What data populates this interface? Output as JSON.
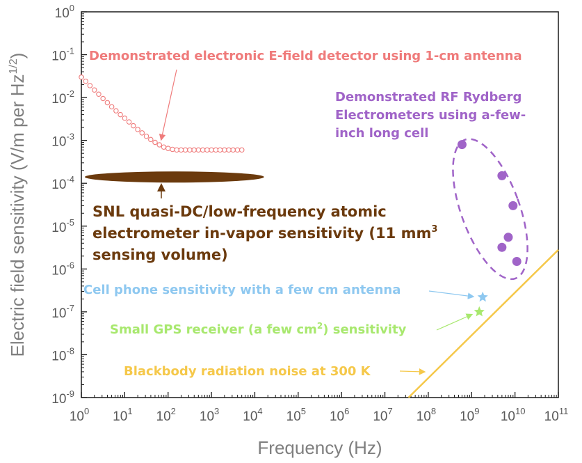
{
  "chart_data": {
    "type": "scatter",
    "title": "",
    "xlabel": "Frequency (Hz)",
    "ylabel": "Electric field sensitivity (V/m per Hz",
    "ylabel_sup": "1/2",
    "ylabel_close": ")",
    "x_scale": "log",
    "y_scale": "log",
    "xlim": [
      1,
      100000000000
    ],
    "ylim": [
      1e-09,
      1
    ],
    "grid": false,
    "x_ticks": [
      {
        "exp": "0",
        "value": 1
      },
      {
        "exp": "1",
        "value": 10
      },
      {
        "exp": "2",
        "value": 100
      },
      {
        "exp": "3",
        "value": 1000
      },
      {
        "exp": "4",
        "value": 10000
      },
      {
        "exp": "5",
        "value": 100000
      },
      {
        "exp": "6",
        "value": 1000000
      },
      {
        "exp": "7",
        "value": 10000000
      },
      {
        "exp": "8",
        "value": 100000000
      },
      {
        "exp": "9",
        "value": 1000000000
      },
      {
        "exp": "10",
        "value": 10000000000
      },
      {
        "exp": "11",
        "value": 100000000000
      }
    ],
    "y_ticks": [
      {
        "exp": "-9",
        "value": 1e-09
      },
      {
        "exp": "-8",
        "value": 1e-08
      },
      {
        "exp": "-7",
        "value": 1e-07
      },
      {
        "exp": "-6",
        "value": 1e-06
      },
      {
        "exp": "-5",
        "value": 1e-05
      },
      {
        "exp": "-4",
        "value": 0.0001
      },
      {
        "exp": "-3",
        "value": 0.001
      },
      {
        "exp": "-2",
        "value": 0.01
      },
      {
        "exp": "-1",
        "value": 0.1
      },
      {
        "exp": "0",
        "value": 1
      }
    ],
    "tick_base": "10",
    "colors": {
      "electronic": "#ef7b7b",
      "rydberg": "#a064c8",
      "snl": "#6b3a0d",
      "cellphone": "#8ec8f0",
      "gps": "#a8e86e",
      "blackbody": "#f5c84a"
    },
    "series": [
      {
        "key": "electronic",
        "marker": "open-circle",
        "x": [
          1.0,
          1.26,
          1.58,
          2.0,
          2.51,
          3.16,
          3.98,
          5.01,
          6.31,
          7.94,
          10.0,
          12.6,
          15.8,
          20.0,
          25.1,
          31.6,
          39.8,
          50.1,
          63.1,
          79.4,
          100,
          126,
          158,
          200,
          251,
          316,
          398,
          501,
          631,
          794,
          1000,
          1260,
          1580,
          2000,
          2510,
          3160,
          3980,
          5010
        ],
        "y": [
          0.03,
          0.024,
          0.019,
          0.015,
          0.012,
          0.0095,
          0.0076,
          0.0061,
          0.0049,
          0.004,
          0.0033,
          0.0027,
          0.0022,
          0.0018,
          0.0015,
          0.00125,
          0.00105,
          0.0009,
          0.00079,
          0.0007,
          0.00065,
          0.00062,
          0.0006,
          0.0006,
          0.0006,
          0.0006,
          0.0006,
          0.0006,
          0.0006,
          0.0006,
          0.0006,
          0.0006,
          0.0006,
          0.0006,
          0.0006,
          0.0006,
          0.0006,
          0.0006
        ]
      },
      {
        "key": "rydberg",
        "marker": "filled-circle",
        "x": [
          600000000,
          5000000000,
          9000000000,
          7000000000,
          5000000000,
          11000000000
        ],
        "y": [
          0.0008,
          0.00015,
          3e-05,
          5.5e-06,
          3.2e-06,
          1.5e-06
        ]
      },
      {
        "key": "cellphone",
        "marker": "star",
        "x": [
          1800000000
        ],
        "y": [
          2.2e-07
        ]
      },
      {
        "key": "gps",
        "marker": "star",
        "x": [
          1500000000
        ],
        "y": [
          1e-07
        ]
      },
      {
        "key": "blackbody",
        "marker": "line",
        "x": [
          35000000,
          100000000000
        ],
        "y": [
          1e-09,
          2.8e-06
        ]
      }
    ],
    "snl_band": {
      "x_start": 1,
      "x_end": 5000,
      "y": 0.00014
    },
    "rydberg_region": {
      "x_center": 3000000000,
      "y_center": 2.5e-05
    },
    "annotations": {
      "electronic": "Demonstrated electronic E-field detector using 1-cm antenna",
      "rydberg_line1": "Demonstrated RF Rydberg",
      "rydberg_line2": "Electrometers using a-few-",
      "rydberg_line3": "inch long cell",
      "snl_line1": "SNL quasi-DC/low-frequency atomic",
      "snl_line2": "electrometer in-vapor sensitivity (11 mm",
      "snl_line2_sup": "3",
      "snl_line3": "sensing volume)",
      "cellphone": "Cell phone sensitivity with a few cm antenna",
      "gps_pre": "Small GPS receiver (a few cm",
      "gps_sup": "2",
      "gps_post": ") sensitivity",
      "blackbody": "Blackbody radiation noise at 300 K"
    }
  }
}
